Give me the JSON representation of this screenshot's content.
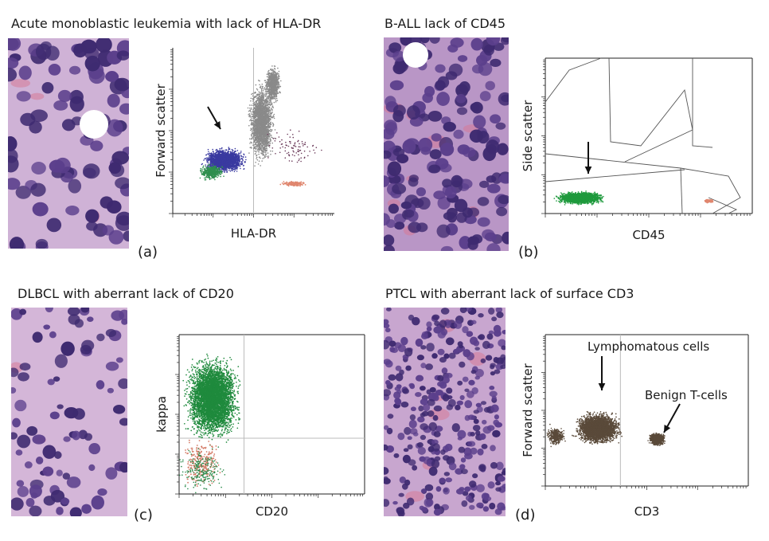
{
  "panels": [
    {
      "id": "a",
      "title": "Acute monoblastic leukemia with lack of HLA-DR",
      "label": "(a)"
    },
    {
      "id": "b",
      "title": "B-ALL lack of CD45",
      "label": "(b)"
    },
    {
      "id": "c",
      "title": "DLBCL with aberrant lack of CD20",
      "label": "(c)"
    },
    {
      "id": "d",
      "title": "PTCL with aberrant lack of surface CD3",
      "label": "(d)"
    }
  ],
  "chart_data": [
    {
      "type": "scatter",
      "panel": "a",
      "xlabel": "HLA-DR",
      "ylabel": "Forward scatter",
      "x_scale": "log",
      "grid": false,
      "series": [
        {
          "color": "#8a8a8a",
          "x_range": [
            0.55,
            0.85
          ],
          "y_range": [
            0.3,
            0.95
          ]
        },
        {
          "color": "#3a3aa0",
          "x_range": [
            0.05,
            0.55
          ],
          "y_range": [
            0.2,
            0.45
          ]
        },
        {
          "color": "#2f8f4f",
          "x_range": [
            0.08,
            0.35
          ],
          "y_range": [
            0.15,
            0.3
          ]
        },
        {
          "color": "#e0876f",
          "x_range": [
            0.6,
            0.95
          ],
          "y_range": [
            0.15,
            0.2
          ]
        }
      ],
      "annotations": [
        {
          "type": "arrow"
        }
      ]
    },
    {
      "type": "scatter",
      "panel": "b",
      "xlabel": "CD45",
      "ylabel": "Side scatter",
      "x_scale": "log",
      "grid": false,
      "series": [
        {
          "color": "#1f9a3d",
          "x_range": [
            0.02,
            0.3
          ],
          "y_range": [
            0.05,
            0.2
          ]
        },
        {
          "color": "#e0876f",
          "x_range": [
            0.75,
            0.85
          ],
          "y_range": [
            0.05,
            0.1
          ]
        }
      ],
      "annotations": [
        {
          "type": "arrow"
        }
      ]
    },
    {
      "type": "scatter",
      "panel": "c",
      "xlabel": "CD20",
      "ylabel": "kappa",
      "x_scale": "log",
      "y_scale": "log",
      "grid": false,
      "series": [
        {
          "color": "#1f8a3d",
          "x_range": [
            0.0,
            0.35
          ],
          "y_range": [
            0.35,
            0.85
          ]
        },
        {
          "color": "#d47a66",
          "x_range": [
            0.0,
            0.3
          ],
          "y_range": [
            0.0,
            0.35
          ]
        }
      ]
    },
    {
      "type": "scatter",
      "panel": "d",
      "xlabel": "CD3",
      "ylabel": "Forward scatter",
      "x_scale": "log",
      "grid": false,
      "series": [
        {
          "color": "#5a4a3a",
          "x_range": [
            0.0,
            0.45
          ],
          "y_range": [
            0.2,
            0.6
          ]
        },
        {
          "color": "#5a4a3a",
          "x_range": [
            0.55,
            0.8
          ],
          "y_range": [
            0.25,
            0.35
          ]
        }
      ],
      "annotations": [
        {
          "text": "Lymphomatous cells"
        },
        {
          "text": "Benign T-cells"
        }
      ]
    }
  ],
  "colors": {
    "histo_bg": "#c7a5cf",
    "nucleus": "#5b3f8c",
    "nucleus_dark": "#3e2a70",
    "rbc": "#d77a98",
    "axis": "#222222"
  }
}
